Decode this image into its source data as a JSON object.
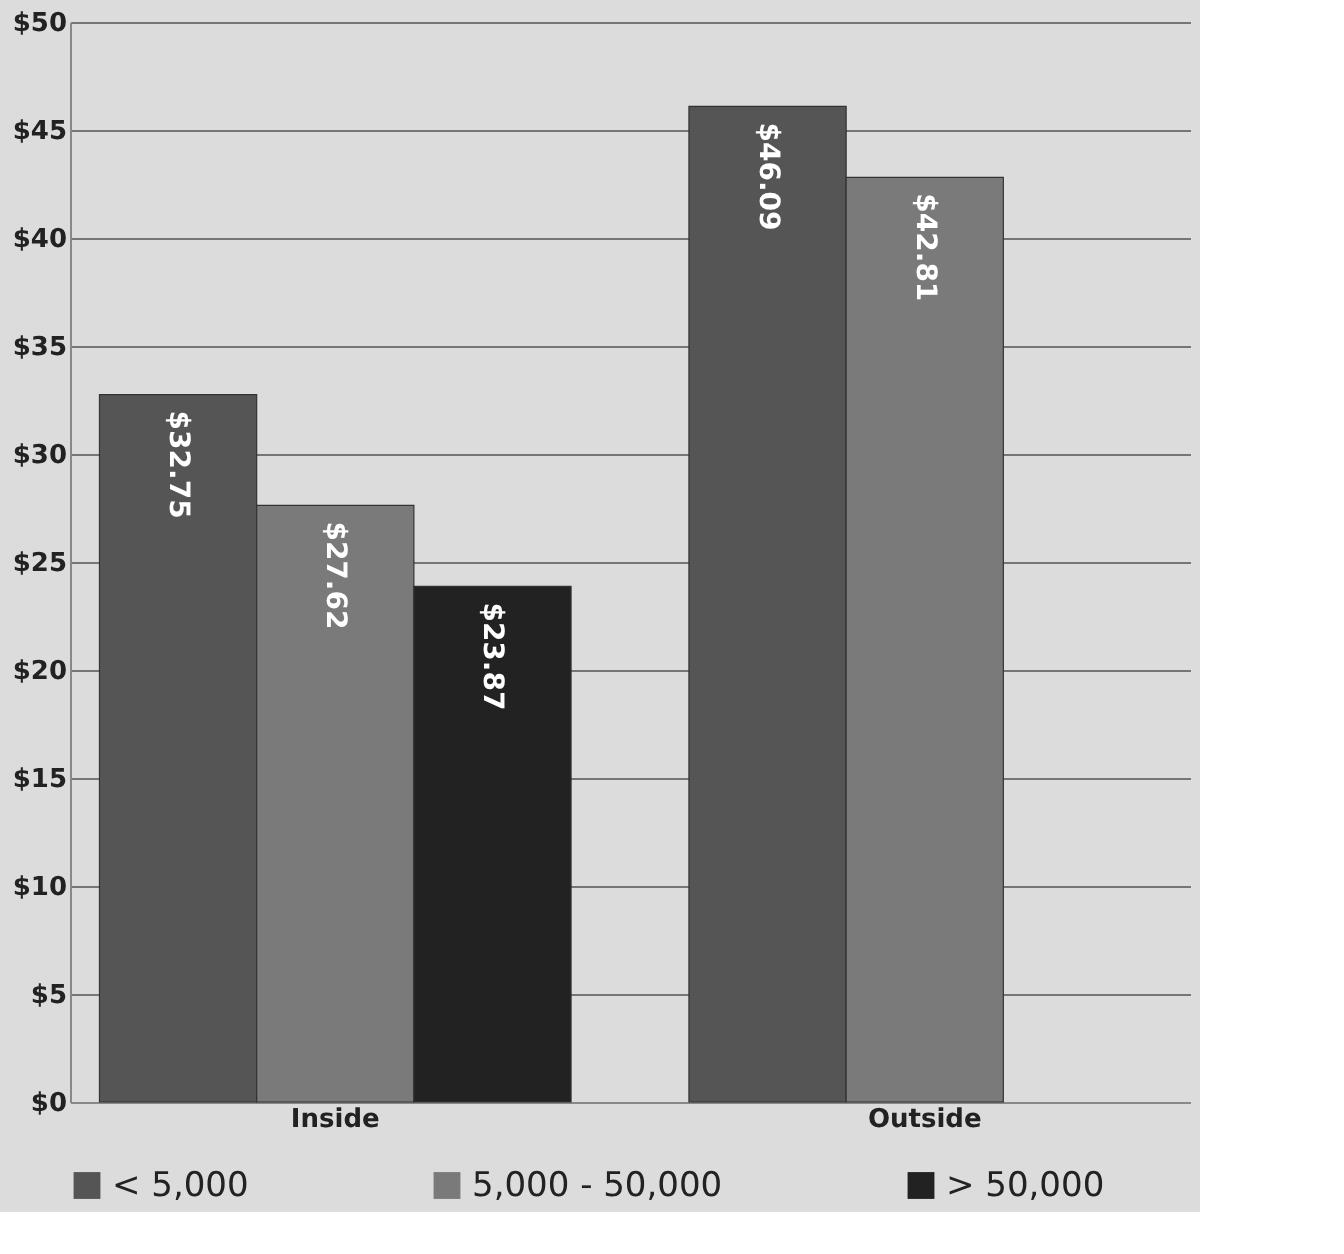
{
  "chart_data": {
    "type": "bar",
    "categories": [
      "Inside",
      "Outside"
    ],
    "series": [
      {
        "name": "< 5,000",
        "color": "#555555",
        "values": [
          32.75,
          46.09
        ],
        "value_labels": [
          "$32.75",
          "$46.09"
        ]
      },
      {
        "name": "5,000 - 50,000",
        "color": "#7a7a7a",
        "values": [
          27.62,
          42.81
        ],
        "value_labels": [
          "$27.62",
          "$42.81"
        ]
      },
      {
        "name": "> 50,000",
        "color": "#222222",
        "values": [
          23.87,
          null
        ],
        "value_labels": [
          "$23.87",
          null
        ]
      }
    ],
    "ylim": [
      0,
      50
    ],
    "yticks": [
      {
        "value": 0,
        "label": "$0"
      },
      {
        "value": 5,
        "label": "$5"
      },
      {
        "value": 10,
        "label": "$10"
      },
      {
        "value": 15,
        "label": "$15"
      },
      {
        "value": 20,
        "label": "$20"
      },
      {
        "value": 25,
        "label": "$25"
      },
      {
        "value": 30,
        "label": "$30"
      },
      {
        "value": 35,
        "label": "$35"
      },
      {
        "value": 40,
        "label": "$40"
      },
      {
        "value": 45,
        "label": "$45"
      },
      {
        "value": 50,
        "label": "$50"
      }
    ],
    "grid": "y",
    "legend": "bottom"
  }
}
